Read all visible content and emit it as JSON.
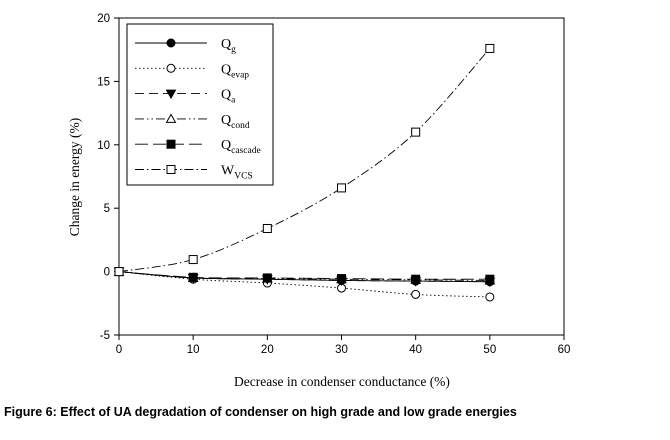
{
  "chart_data": {
    "type": "line",
    "xlabel": "Decrease in condenser conductance (%)",
    "ylabel": "Change in energy (%)",
    "xlim": [
      0,
      60
    ],
    "ylim": [
      -5,
      20
    ],
    "xticks": [
      0,
      10,
      20,
      30,
      40,
      50,
      60
    ],
    "yticks": [
      -5,
      0,
      5,
      10,
      15,
      20
    ],
    "grid": false,
    "legend_position": "top-left",
    "x": [
      0,
      10,
      20,
      30,
      40,
      50
    ],
    "series": [
      {
        "name": "Q",
        "sub": "g",
        "marker": "filled-circle",
        "dash": "solid",
        "values": [
          0,
          -0.5,
          -0.6,
          -0.7,
          -0.75,
          -0.8
        ]
      },
      {
        "name": "Q",
        "sub": "evap",
        "marker": "open-circle",
        "dash": "dotted",
        "values": [
          0,
          -0.6,
          -0.9,
          -1.3,
          -1.8,
          -2.0
        ]
      },
      {
        "name": "Q",
        "sub": "a",
        "marker": "filled-triangle-down",
        "dash": "dashed",
        "values": [
          0,
          -0.5,
          -0.6,
          -0.7,
          -0.75,
          -0.8
        ]
      },
      {
        "name": "Q",
        "sub": "cond",
        "marker": "open-triangle-up",
        "dash": "dash-dot-dot",
        "values": [
          0,
          -0.5,
          -0.55,
          -0.6,
          -0.65,
          -0.7
        ]
      },
      {
        "name": "Q",
        "sub": "cascade",
        "marker": "filled-square",
        "dash": "long-dash",
        "values": [
          0,
          -0.45,
          -0.5,
          -0.55,
          -0.6,
          -0.6
        ]
      },
      {
        "name": "W",
        "sub": "VCS",
        "marker": "open-square",
        "dash": "dash-dot",
        "values": [
          0,
          0.95,
          3.4,
          6.6,
          11.0,
          17.6
        ]
      }
    ]
  },
  "caption": "Figure 6: Effect of UA degradation of condenser on high grade and low grade energies"
}
